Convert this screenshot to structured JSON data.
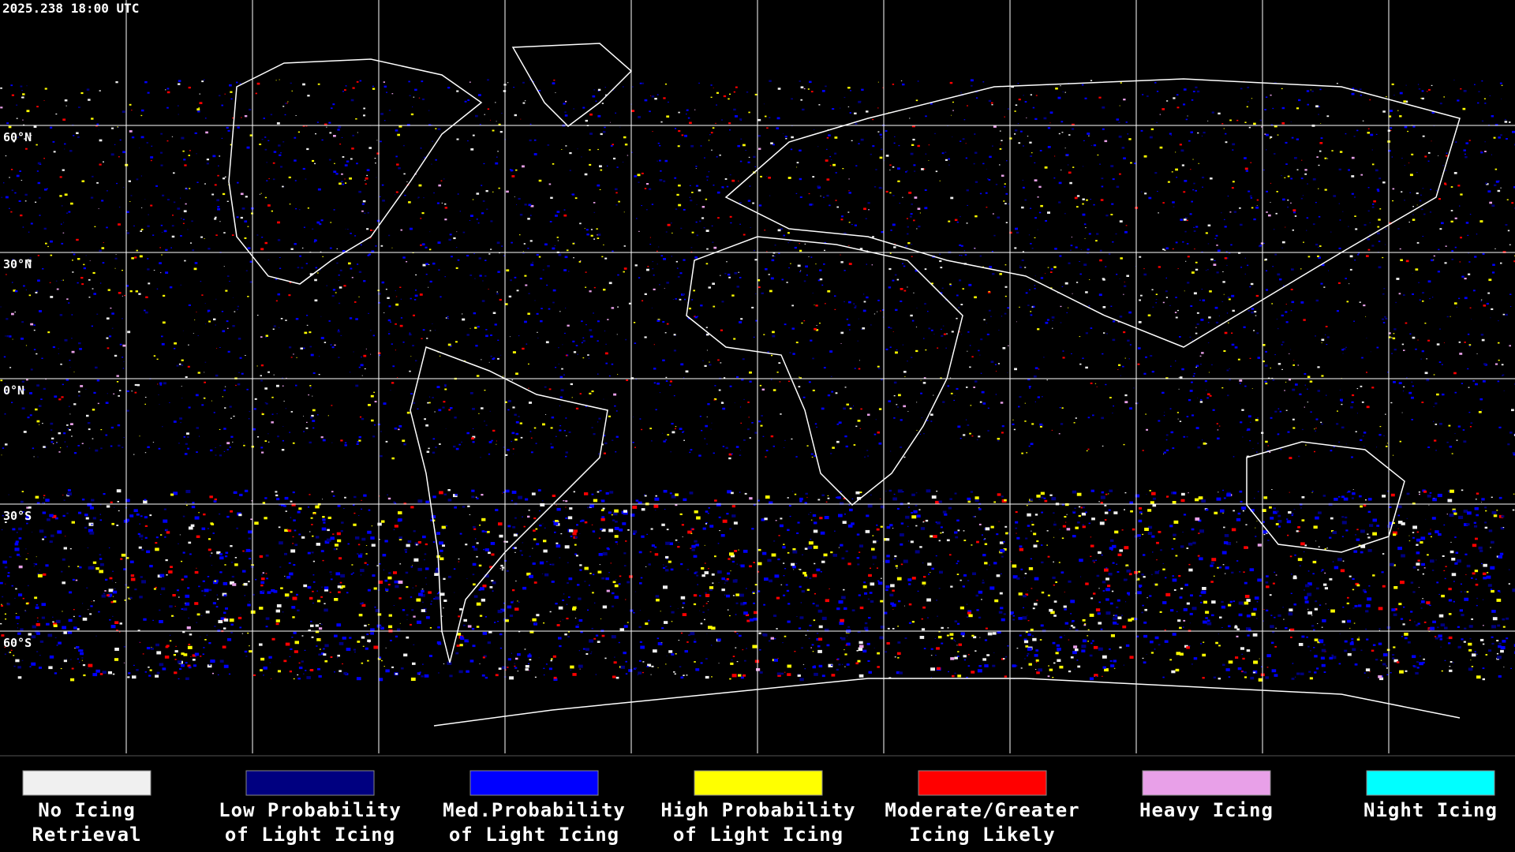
{
  "timestamp": "2025.238 18:00 UTC",
  "map": {
    "latitude_labels": [
      "60°N",
      "30°N",
      "0°N",
      "30°S",
      "60°S"
    ]
  },
  "legend": [
    {
      "color": "#f0f0f0",
      "lines": [
        "No Icing",
        "Retrieval"
      ]
    },
    {
      "color": "#000080",
      "lines": [
        "Low Probability",
        "of Light Icing"
      ]
    },
    {
      "color": "#0000ff",
      "lines": [
        "Med.Probability",
        "of Light Icing"
      ]
    },
    {
      "color": "#ffff00",
      "lines": [
        "High Probability",
        "of Light Icing"
      ]
    },
    {
      "color": "#ff0000",
      "lines": [
        "Moderate/Greater",
        "Icing Likely"
      ]
    },
    {
      "color": "#e8a0e8",
      "lines": [
        "Heavy Icing"
      ]
    },
    {
      "color": "#00ffff",
      "lines": [
        "Night Icing"
      ]
    }
  ]
}
